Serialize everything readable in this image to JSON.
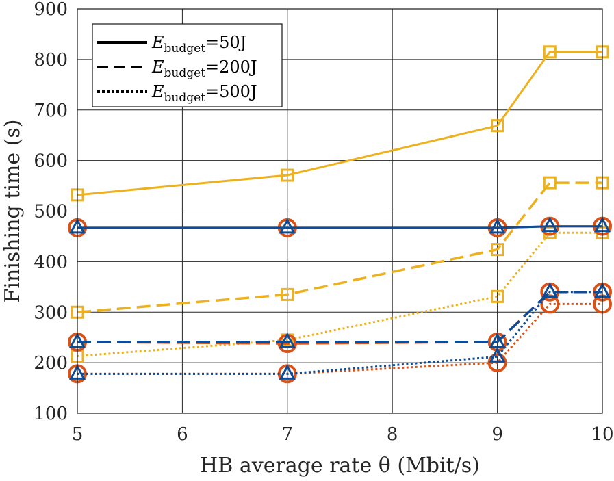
{
  "chart_data": {
    "type": "line",
    "title": "",
    "xlabel": "HB average rate θ (Mbit/s)",
    "ylabel": "Finishing time (s)",
    "xlim": [
      5,
      10
    ],
    "ylim": [
      100,
      900
    ],
    "xticks": [
      5,
      6,
      7,
      8,
      9,
      10
    ],
    "yticks": [
      100,
      200,
      300,
      400,
      500,
      600,
      700,
      800,
      900
    ],
    "grid": true,
    "legend_position": "top-left",
    "x": [
      5,
      7,
      9,
      9.5,
      10
    ],
    "legend": [
      {
        "prefix": "E",
        "sub": "budget",
        "suffix": "=50J",
        "style": "solid"
      },
      {
        "prefix": "E",
        "sub": "budget",
        "suffix": "=200J",
        "style": "dashed"
      },
      {
        "prefix": "E",
        "sub": "budget",
        "suffix": "=500J",
        "style": "dotted"
      }
    ],
    "series": [
      {
        "name": "Yellow square, E_budget=50J",
        "color": "#EDB120",
        "marker": "square",
        "style": "solid",
        "values": [
          532,
          571,
          669,
          815,
          815
        ]
      },
      {
        "name": "Yellow square, E_budget=200J",
        "color": "#EDB120",
        "marker": "square",
        "style": "dashed",
        "values": [
          300,
          335,
          424,
          556,
          556
        ]
      },
      {
        "name": "Yellow square, E_budget=500J",
        "color": "#EDB120",
        "marker": "square",
        "style": "dotted",
        "values": [
          213,
          245,
          331,
          457,
          457
        ]
      },
      {
        "name": "Red circle, E_budget=50J",
        "color": "#D95319",
        "marker": "circle",
        "style": "solid",
        "values": [
          467,
          467,
          467,
          470,
          470
        ]
      },
      {
        "name": "Red circle, E_budget=200J",
        "color": "#D95319",
        "marker": "circle",
        "style": "dashed",
        "values": [
          241,
          238,
          241,
          340,
          340
        ]
      },
      {
        "name": "Red circle, E_budget=500J",
        "color": "#D95319",
        "marker": "circle",
        "style": "dotted",
        "values": [
          178,
          178,
          200,
          316,
          316
        ]
      },
      {
        "name": "Blue triangle, E_budget=50J",
        "color": "#0E4C96",
        "marker": "triangle",
        "style": "solid",
        "values": [
          467,
          467,
          467,
          470,
          470
        ]
      },
      {
        "name": "Blue triangle, E_budget=200J",
        "color": "#0E4C96",
        "marker": "triangle",
        "style": "dashed",
        "values": [
          241,
          241,
          241,
          340,
          340
        ]
      },
      {
        "name": "Blue triangle, E_budget=500J",
        "color": "#0E4C96",
        "marker": "triangle",
        "style": "dotted",
        "values": [
          178,
          178,
          212,
          340,
          340
        ]
      }
    ]
  }
}
